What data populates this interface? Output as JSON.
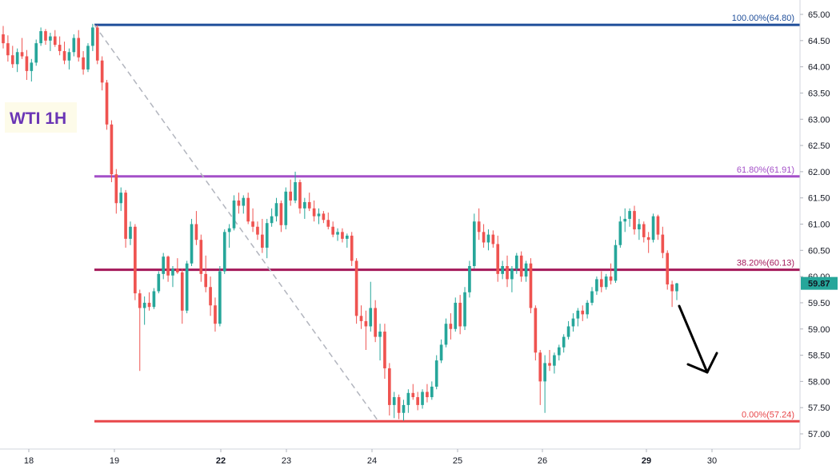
{
  "chart_data": {
    "type": "candlestick",
    "title": "WTI 1H",
    "x_tick_labels": [
      "18",
      "19",
      "22",
      "23",
      "24",
      "25",
      "26",
      "29",
      "30"
    ],
    "y_tick_labels": [
      "57.00",
      "57.50",
      "58.00",
      "58.50",
      "59.00",
      "59.50",
      "60.00",
      "60.50",
      "61.00",
      "61.50",
      "62.00",
      "62.50",
      "63.00",
      "63.50",
      "64.00",
      "64.50",
      "65.00"
    ],
    "ylim": [
      56.8,
      65.2
    ],
    "current_price": "59.87",
    "fib_levels": [
      {
        "label": "100.00%(64.80)",
        "value": 64.8,
        "color": "#1f4e9a"
      },
      {
        "label": "61.80%(61.91)",
        "value": 61.91,
        "color": "#a450c8"
      },
      {
        "label": "38.20%(60.13)",
        "value": 60.13,
        "color": "#a4195a"
      },
      {
        "label": "0.00%(57.24)",
        "value": 57.24,
        "color": "#e8474a"
      }
    ],
    "fib_anchor": {
      "start_price": 64.8,
      "end_price": 57.24
    },
    "colors": {
      "up": "#26a69a",
      "down": "#ef5350",
      "price_tag": "#26a69a",
      "trend_dash": "#b2b5be",
      "title": "#6a35b5",
      "arrow": "#000000"
    },
    "candles": [
      [
        64.62,
        64.78,
        64.35,
        64.45
      ],
      [
        64.45,
        64.6,
        64.1,
        64.22
      ],
      [
        64.22,
        64.4,
        63.98,
        64.05
      ],
      [
        64.05,
        64.35,
        63.9,
        64.28
      ],
      [
        64.28,
        64.55,
        64.15,
        64.2
      ],
      [
        64.2,
        64.32,
        63.75,
        63.92
      ],
      [
        63.92,
        64.15,
        63.72,
        64.08
      ],
      [
        64.08,
        64.52,
        64.02,
        64.45
      ],
      [
        64.45,
        64.75,
        64.4,
        64.68
      ],
      [
        64.68,
        64.72,
        64.42,
        64.5
      ],
      [
        64.5,
        64.65,
        64.3,
        64.58
      ],
      [
        64.58,
        64.7,
        64.38,
        64.42
      ],
      [
        64.42,
        64.58,
        64.22,
        64.3
      ],
      [
        64.3,
        64.48,
        64.05,
        64.12
      ],
      [
        64.12,
        64.35,
        63.95,
        64.28
      ],
      [
        64.28,
        64.62,
        64.2,
        64.55
      ],
      [
        64.55,
        64.7,
        64.1,
        64.18
      ],
      [
        64.18,
        64.3,
        63.85,
        63.95
      ],
      [
        63.95,
        64.45,
        63.9,
        64.4
      ],
      [
        64.4,
        64.82,
        64.3,
        64.75
      ],
      [
        64.75,
        64.8,
        64.05,
        64.12
      ],
      [
        64.12,
        64.2,
        63.55,
        63.7
      ],
      [
        63.7,
        63.75,
        62.8,
        62.9
      ],
      [
        62.9,
        62.98,
        61.8,
        61.95
      ],
      [
        61.95,
        62.05,
        61.2,
        61.4
      ],
      [
        61.4,
        61.7,
        61.25,
        61.6
      ],
      [
        61.6,
        61.65,
        60.55,
        60.72
      ],
      [
        60.72,
        61.05,
        60.6,
        60.95
      ],
      [
        60.95,
        61.0,
        59.55,
        59.68
      ],
      [
        59.68,
        59.75,
        58.2,
        59.4
      ],
      [
        59.4,
        59.62,
        59.08,
        59.5
      ],
      [
        59.5,
        59.7,
        59.35,
        59.42
      ],
      [
        59.42,
        59.78,
        59.38,
        59.72
      ],
      [
        59.72,
        60.1,
        59.68,
        60.05
      ],
      [
        60.05,
        60.45,
        59.95,
        60.38
      ],
      [
        60.38,
        60.4,
        59.9,
        60.02
      ],
      [
        60.02,
        60.2,
        59.8,
        60.15
      ],
      [
        60.15,
        60.35,
        60.05,
        60.08
      ],
      [
        60.08,
        60.15,
        59.1,
        59.35
      ],
      [
        59.35,
        60.3,
        59.3,
        60.25
      ],
      [
        60.25,
        61.1,
        60.2,
        61.0
      ],
      [
        61.0,
        61.25,
        60.6,
        60.7
      ],
      [
        60.7,
        60.8,
        59.9,
        60.05
      ],
      [
        60.05,
        60.4,
        59.7,
        59.8
      ],
      [
        59.8,
        60.0,
        59.25,
        59.45
      ],
      [
        59.45,
        59.6,
        58.95,
        59.1
      ],
      [
        59.1,
        60.2,
        59.05,
        60.1
      ],
      [
        60.1,
        60.9,
        60.05,
        60.85
      ],
      [
        60.85,
        61.0,
        60.55,
        60.92
      ],
      [
        60.92,
        61.55,
        60.88,
        61.45
      ],
      [
        61.45,
        61.6,
        61.2,
        61.35
      ],
      [
        61.35,
        61.55,
        61.2,
        61.5
      ],
      [
        61.5,
        61.6,
        61.0,
        61.05
      ],
      [
        61.05,
        61.3,
        60.85,
        60.95
      ],
      [
        60.95,
        61.05,
        60.7,
        60.8
      ],
      [
        60.8,
        61.1,
        60.45,
        60.55
      ],
      [
        60.55,
        61.1,
        60.35,
        61.02
      ],
      [
        61.02,
        61.3,
        60.95,
        61.15
      ],
      [
        61.15,
        61.5,
        61.05,
        61.4
      ],
      [
        61.4,
        61.45,
        60.85,
        60.98
      ],
      [
        60.98,
        61.7,
        60.9,
        61.62
      ],
      [
        61.62,
        61.85,
        61.35,
        61.45
      ],
      [
        61.45,
        62.0,
        61.4,
        61.8
      ],
      [
        61.8,
        61.85,
        61.2,
        61.3
      ],
      [
        61.3,
        61.5,
        61.1,
        61.42
      ],
      [
        61.42,
        61.6,
        61.25,
        61.3
      ],
      [
        61.3,
        61.45,
        61.05,
        61.15
      ],
      [
        61.15,
        61.3,
        61.0,
        61.2
      ],
      [
        61.2,
        61.25,
        61.02,
        61.08
      ],
      [
        61.08,
        61.22,
        60.9,
        60.95
      ],
      [
        60.95,
        61.05,
        60.75,
        60.8
      ],
      [
        60.8,
        60.92,
        60.68,
        60.85
      ],
      [
        60.85,
        60.92,
        60.65,
        60.72
      ],
      [
        60.72,
        60.82,
        60.55,
        60.78
      ],
      [
        60.78,
        60.85,
        60.2,
        60.3
      ],
      [
        60.3,
        60.35,
        59.1,
        59.25
      ],
      [
        59.25,
        59.45,
        59.0,
        59.15
      ],
      [
        59.15,
        59.35,
        58.6,
        59.05
      ],
      [
        59.05,
        59.9,
        58.95,
        59.4
      ],
      [
        59.4,
        59.55,
        58.75,
        58.85
      ],
      [
        58.85,
        59.1,
        58.4,
        58.95
      ],
      [
        58.95,
        59.1,
        58.05,
        58.25
      ],
      [
        58.25,
        58.35,
        57.35,
        57.55
      ],
      [
        57.55,
        57.8,
        57.3,
        57.7
      ],
      [
        57.7,
        57.75,
        57.28,
        57.4
      ],
      [
        57.4,
        57.65,
        57.25,
        57.55
      ],
      [
        57.55,
        57.85,
        57.4,
        57.78
      ],
      [
        57.78,
        57.95,
        57.65,
        57.7
      ],
      [
        57.7,
        57.8,
        57.45,
        57.55
      ],
      [
        57.55,
        57.85,
        57.48,
        57.8
      ],
      [
        57.8,
        57.95,
        57.6,
        57.7
      ],
      [
        57.7,
        58.0,
        57.65,
        57.9
      ],
      [
        57.9,
        58.5,
        57.85,
        58.4
      ],
      [
        58.4,
        58.8,
        58.35,
        58.7
      ],
      [
        58.7,
        59.2,
        58.65,
        59.1
      ],
      [
        59.1,
        59.3,
        58.8,
        59.0
      ],
      [
        59.0,
        59.6,
        58.95,
        59.5
      ],
      [
        59.5,
        59.65,
        58.9,
        59.05
      ],
      [
        59.05,
        59.8,
        58.98,
        59.7
      ],
      [
        59.7,
        60.3,
        59.6,
        60.2
      ],
      [
        60.2,
        61.2,
        60.15,
        61.05
      ],
      [
        61.05,
        61.3,
        60.7,
        60.85
      ],
      [
        60.85,
        61.0,
        60.55,
        60.65
      ],
      [
        60.65,
        60.9,
        60.5,
        60.8
      ],
      [
        60.8,
        60.88,
        60.55,
        60.62
      ],
      [
        60.62,
        60.78,
        59.9,
        60.05
      ],
      [
        60.05,
        60.3,
        59.95,
        60.2
      ],
      [
        60.2,
        60.4,
        59.8,
        59.95
      ],
      [
        59.95,
        60.2,
        59.7,
        60.15
      ],
      [
        60.15,
        60.45,
        60.05,
        60.4
      ],
      [
        60.4,
        60.48,
        59.9,
        60.0
      ],
      [
        60.0,
        60.3,
        59.9,
        60.25
      ],
      [
        60.25,
        60.35,
        59.3,
        59.4
      ],
      [
        59.4,
        59.45,
        58.4,
        58.55
      ],
      [
        58.55,
        58.6,
        57.55,
        58.0
      ],
      [
        58.0,
        58.5,
        57.4,
        58.35
      ],
      [
        58.35,
        58.6,
        58.2,
        58.3
      ],
      [
        58.3,
        58.55,
        58.15,
        58.5
      ],
      [
        58.5,
        58.7,
        58.4,
        58.65
      ],
      [
        58.65,
        58.9,
        58.55,
        58.85
      ],
      [
        58.85,
        59.15,
        58.8,
        59.05
      ],
      [
        59.05,
        59.3,
        58.95,
        59.2
      ],
      [
        59.2,
        59.4,
        59.05,
        59.35
      ],
      [
        59.35,
        59.45,
        59.15,
        59.28
      ],
      [
        59.28,
        59.55,
        59.2,
        59.5
      ],
      [
        59.5,
        59.8,
        59.45,
        59.72
      ],
      [
        59.72,
        60.0,
        59.65,
        59.95
      ],
      [
        59.95,
        60.1,
        59.7,
        59.8
      ],
      [
        59.8,
        60.05,
        59.75,
        60.0
      ],
      [
        60.0,
        60.25,
        59.85,
        59.92
      ],
      [
        59.92,
        60.7,
        59.88,
        60.6
      ],
      [
        60.6,
        61.15,
        60.55,
        61.05
      ],
      [
        61.05,
        61.3,
        60.85,
        61.1
      ],
      [
        61.1,
        61.3,
        60.95,
        61.25
      ],
      [
        61.25,
        61.35,
        60.8,
        60.9
      ],
      [
        60.9,
        61.1,
        60.7,
        61.0
      ],
      [
        61.0,
        61.05,
        60.65,
        60.75
      ],
      [
        60.75,
        60.85,
        60.45,
        60.7
      ],
      [
        60.7,
        61.2,
        60.65,
        61.15
      ],
      [
        61.15,
        61.18,
        60.7,
        60.8
      ],
      [
        60.8,
        60.95,
        60.35,
        60.45
      ],
      [
        60.45,
        60.5,
        59.75,
        59.85
      ],
      [
        59.85,
        59.92,
        59.42,
        59.72
      ],
      [
        59.72,
        59.88,
        59.55,
        59.87
      ]
    ]
  },
  "annotation": {
    "arrow": "down-arrow"
  }
}
